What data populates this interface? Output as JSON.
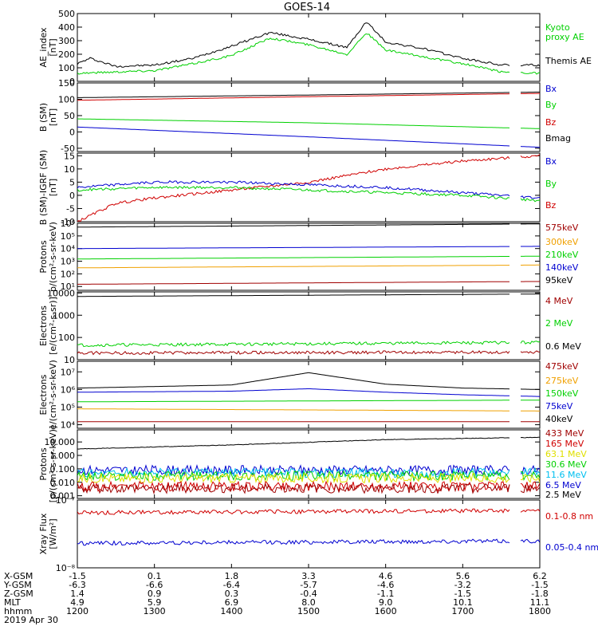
{
  "title": "GOES-14",
  "colors": {
    "black": "#000000",
    "red": "#d00000",
    "green": "#00d000",
    "blue": "#0000d0",
    "orange": "#f0a000",
    "cyan": "#00c0f0",
    "yellow": "#e0e000",
    "darkred": "#a00000"
  },
  "panels": [
    {
      "id": "ae",
      "ylabel": [
        "AE_index",
        "[nT]"
      ],
      "ticks": [
        {
          "v": 500,
          "t": "500"
        },
        {
          "v": 400,
          "t": "400"
        },
        {
          "v": 300,
          "t": "300"
        },
        {
          "v": 200,
          "t": "200"
        },
        {
          "v": 100,
          "t": "100"
        },
        {
          "v": 0,
          "t": "0"
        }
      ],
      "ymin": 0,
      "ymax": 500,
      "log": false,
      "legend": [
        {
          "text": "Kyoto",
          "color": "#00d000"
        },
        {
          "text": "proxy AE",
          "color": "#00d000"
        },
        {
          "text": "Themis AE",
          "color": "#000000"
        }
      ]
    },
    {
      "id": "b",
      "ylabel": [
        "B (SM)",
        "[nT]"
      ],
      "ticks": [
        {
          "v": 150,
          "t": "150"
        },
        {
          "v": 100,
          "t": "100"
        },
        {
          "v": 50,
          "t": "50"
        },
        {
          "v": 0,
          "t": "0"
        },
        {
          "v": -50,
          "t": "-50"
        }
      ],
      "ymin": -60,
      "ymax": 150,
      "log": false,
      "legend": [
        {
          "text": "Bx",
          "color": "#0000d0"
        },
        {
          "text": "By",
          "color": "#00d000"
        },
        {
          "text": "Bz",
          "color": "#d00000"
        },
        {
          "text": "Bmag",
          "color": "#000000"
        }
      ]
    },
    {
      "id": "bigrf",
      "ylabel": [
        "B (SM)-IGRF (SM)",
        "[nT]"
      ],
      "ticks": [
        {
          "v": 15,
          "t": "15"
        },
        {
          "v": 10,
          "t": "10"
        },
        {
          "v": 5,
          "t": "5"
        },
        {
          "v": 0,
          "t": "0"
        },
        {
          "v": -5,
          "t": "-5"
        },
        {
          "v": -10,
          "t": "-10"
        }
      ],
      "ymin": -10,
      "ymax": 16,
      "log": false,
      "legend": [
        {
          "text": "Bx",
          "color": "#0000d0"
        },
        {
          "text": "By",
          "color": "#00d000"
        },
        {
          "text": "Bz",
          "color": "#d00000"
        }
      ]
    },
    {
      "id": "protons1",
      "ylabel": [
        "Protons",
        "p/(cm²-s-sr-keV)"
      ],
      "ticks": [
        {
          "v": 6,
          "t": "10⁶"
        },
        {
          "v": 5,
          "t": "10⁵"
        },
        {
          "v": 4,
          "t": "10⁴"
        },
        {
          "v": 3,
          "t": "10³"
        },
        {
          "v": 2,
          "t": "10²"
        },
        {
          "v": 1,
          "t": "10¹"
        }
      ],
      "ymin": 0.7,
      "ymax": 6,
      "log": true,
      "legend": [
        {
          "text": "575keV",
          "color": "#a00000"
        },
        {
          "text": "300keV",
          "color": "#f0a000"
        },
        {
          "text": "210keV",
          "color": "#00d000"
        },
        {
          "text": "140keV",
          "color": "#0000d0"
        },
        {
          "text": "95keV",
          "color": "#000000"
        }
      ]
    },
    {
      "id": "electrons1",
      "ylabel": [
        "Electrons",
        "[e/(cm²-s-sr)]"
      ],
      "ticks": [
        {
          "v": 4,
          "t": "10000"
        },
        {
          "v": 3,
          "t": "1000"
        },
        {
          "v": 2,
          "t": "100"
        },
        {
          "v": 1,
          "t": "10"
        }
      ],
      "ymin": 1,
      "ymax": 4.05,
      "log": true,
      "legend": [
        {
          "text": "4 MeV",
          "color": "#a00000"
        },
        {
          "text": "2 MeV",
          "color": "#00d000"
        },
        {
          "text": "0.6 MeV",
          "color": "#000000"
        }
      ]
    },
    {
      "id": "electrons2",
      "ylabel": [
        "Electrons",
        "e/(cm²-s-sr-keV)"
      ],
      "ticks": [
        {
          "v": 7,
          "t": "10⁷"
        },
        {
          "v": 6,
          "t": "10⁶"
        },
        {
          "v": 5,
          "t": "10⁵"
        },
        {
          "v": 4,
          "t": "10⁴"
        }
      ],
      "ymin": 3.8,
      "ymax": 7.6,
      "log": true,
      "legend": [
        {
          "text": "475keV",
          "color": "#a00000"
        },
        {
          "text": "275keV",
          "color": "#f0a000"
        },
        {
          "text": "150keV",
          "color": "#00d000"
        },
        {
          "text": "75keV",
          "color": "#0000d0"
        },
        {
          "text": "40keV",
          "color": "#000000"
        }
      ]
    },
    {
      "id": "protons2",
      "ylabel": [
        "Protons",
        "[p/(cm²-s-sr-keV)]"
      ],
      "ticks": [
        {
          "v": 1,
          "t": "10.000"
        },
        {
          "v": 0,
          "t": "1.000"
        },
        {
          "v": -1,
          "t": "0.100"
        },
        {
          "v": -2,
          "t": "0.010"
        },
        {
          "v": -3,
          "t": "0.001"
        }
      ],
      "ymin": -3.2,
      "ymax": 1.9,
      "log": true,
      "legend": [
        {
          "text": "433 MeV",
          "color": "#a00000"
        },
        {
          "text": "165 MeV",
          "color": "#d00000"
        },
        {
          "text": "63.1 MeV",
          "color": "#e0e000"
        },
        {
          "text": "30.6 MeV",
          "color": "#00d000"
        },
        {
          "text": "11.6 MeV",
          "color": "#00c0f0"
        },
        {
          "text": "6.5 MeV",
          "color": "#0000d0"
        },
        {
          "text": "2.5 MeV",
          "color": "#000000"
        }
      ]
    },
    {
      "id": "xray",
      "ylabel": [
        "Xray Flux",
        "[W/m²]"
      ],
      "ticks": [
        {
          "v": -7,
          "t": "10⁻⁷"
        },
        {
          "v": -8,
          "t": "10⁻⁸"
        }
      ],
      "ymin": -8,
      "ymax": -7,
      "log": true,
      "legend": [
        {
          "text": "0.1-0.8 nm",
          "color": "#d00000"
        },
        {
          "text": "0.05-0.4 nm",
          "color": "#0000d0"
        }
      ]
    }
  ],
  "axis_rows": [
    {
      "label": "X-GSM",
      "values": [
        "-1.5",
        "0.1",
        "1.8",
        "3.3",
        "4.6",
        "5.6",
        "6.2"
      ]
    },
    {
      "label": "Y-GSM",
      "values": [
        "-6.3",
        "-6.6",
        "-6.4",
        "-5.7",
        "-4.6",
        "-3.2",
        "-1.5"
      ]
    },
    {
      "label": "Z-GSM",
      "values": [
        "1.4",
        "0.9",
        "0.3",
        "-0.4",
        "-1.1",
        "-1.5",
        "-1.8"
      ]
    },
    {
      "label": "MLT",
      "values": [
        "4.9",
        "5.9",
        "6.9",
        "8.0",
        "9.0",
        "10.1",
        "11.1"
      ]
    },
    {
      "label": "hhmm",
      "values": [
        "1200",
        "1300",
        "1400",
        "1500",
        "1600",
        "1700",
        "1800"
      ]
    }
  ],
  "date": "2019 Apr 30",
  "chart_data": {
    "type": "line",
    "title": "GOES-14",
    "x_ticks": [
      "1200",
      "1300",
      "1400",
      "1500",
      "1600",
      "1700",
      "1800"
    ],
    "panels": [
      {
        "ylabel": "AE_index [nT]",
        "series": [
          {
            "name": "Themis AE",
            "color": "#000000",
            "x": [
              1200,
              1210,
              1230,
              1300,
              1330,
              1400,
              1430,
              1500,
              1530,
              1545,
              1600,
              1630,
              1700,
              1730,
              1800
            ],
            "y": [
              130,
              170,
              110,
              120,
              170,
              260,
              360,
              310,
              250,
              440,
              290,
              240,
              170,
              120,
              120
            ]
          },
          {
            "name": "Kyoto proxy AE",
            "color": "#00d000",
            "x": [
              1200,
              1230,
              1300,
              1330,
              1400,
              1430,
              1500,
              1530,
              1545,
              1600,
              1630,
              1700,
              1730,
              1800
            ],
            "y": [
              60,
              70,
              80,
              130,
              190,
              320,
              270,
              200,
              360,
              230,
              180,
              130,
              70,
              60
            ]
          }
        ]
      },
      {
        "ylabel": "B (SM) [nT]",
        "series": [
          {
            "name": "Bmag",
            "color": "#000000",
            "x": [
              1200,
              1500,
              1800
            ],
            "y": [
              105,
              113,
              122
            ]
          },
          {
            "name": "Bz",
            "color": "#d00000",
            "x": [
              1200,
              1500,
              1800
            ],
            "y": [
              97,
              108,
              118
            ]
          },
          {
            "name": "By",
            "color": "#00d000",
            "x": [
              1200,
              1500,
              1800
            ],
            "y": [
              40,
              28,
              10
            ]
          },
          {
            "name": "Bx",
            "color": "#0000d0",
            "x": [
              1200,
              1500,
              1800
            ],
            "y": [
              15,
              -15,
              -47
            ]
          }
        ]
      },
      {
        "ylabel": "B (SM)-IGRF (SM) [nT]",
        "series": [
          {
            "name": "Bz",
            "color": "#d00000",
            "x": [
              1200,
              1230,
              1300,
              1400,
              1500,
              1600,
              1700,
              1800
            ],
            "y": [
              -10,
              -3,
              -1,
              2,
              5,
              10,
              13,
              15
            ]
          },
          {
            "name": "Bx",
            "color": "#0000d0",
            "x": [
              1200,
              1300,
              1400,
              1500,
              1600,
              1700,
              1800
            ],
            "y": [
              3,
              5,
              5,
              4,
              3,
              1,
              -1
            ]
          },
          {
            "name": "By",
            "color": "#00d000",
            "x": [
              1200,
              1300,
              1400,
              1500,
              1600,
              1700,
              1800
            ],
            "y": [
              2,
              3,
              3,
              2,
              1,
              0,
              -2
            ]
          }
        ]
      },
      {
        "ylabel": "Protons p/(cm2-s-sr-keV)",
        "series": [
          {
            "name": "95keV",
            "color": "#000000",
            "x": [
              1200,
              1800
            ],
            "y": [
              500000,
              900000
            ]
          },
          {
            "name": "140keV",
            "color": "#0000d0",
            "x": [
              1200,
              1800
            ],
            "y": [
              10000,
              15000
            ]
          },
          {
            "name": "210keV",
            "color": "#00d000",
            "x": [
              1200,
              1800
            ],
            "y": [
              1500,
              2500
            ]
          },
          {
            "name": "300keV",
            "color": "#f0a000",
            "x": [
              1200,
              1800
            ],
            "y": [
              300,
              500
            ]
          },
          {
            "name": "575keV",
            "color": "#a00000",
            "x": [
              1200,
              1800
            ],
            "y": [
              15,
              25
            ]
          }
        ]
      },
      {
        "ylabel": "Electrons [e/(cm2-s-sr)]",
        "series": [
          {
            "name": "0.6 MeV",
            "color": "#000000",
            "x": [
              1200,
              1800
            ],
            "y": [
              7000,
              9000
            ]
          },
          {
            "name": "2 MeV",
            "color": "#00d000",
            "x": [
              1200,
              1800
            ],
            "y": [
              45,
              60
            ]
          },
          {
            "name": "4 MeV",
            "color": "#a00000",
            "x": [
              1200,
              1800
            ],
            "y": [
              20,
              22
            ]
          }
        ]
      },
      {
        "ylabel": "Electrons e/(cm2-s-sr-keV)",
        "series": [
          {
            "name": "40keV",
            "color": "#000000",
            "x": [
              1200,
              1400,
              1500,
              1600,
              1700,
              1800
            ],
            "y": [
              1200000,
              1800000,
              9000000,
              2000000,
              1200000,
              1000000
            ]
          },
          {
            "name": "75keV",
            "color": "#0000d0",
            "x": [
              1200,
              1400,
              1500,
              1600,
              1700,
              1800
            ],
            "y": [
              700000,
              800000,
              1100000,
              700000,
              500000,
              400000
            ]
          },
          {
            "name": "150keV",
            "color": "#00d000",
            "x": [
              1200,
              1800
            ],
            "y": [
              200000,
              250000
            ]
          },
          {
            "name": "275keV",
            "color": "#f0a000",
            "x": [
              1200,
              1800
            ],
            "y": [
              80000,
              60000
            ]
          },
          {
            "name": "475keV",
            "color": "#a00000",
            "x": [
              1200,
              1800
            ],
            "y": [
              15000,
              15000
            ]
          }
        ]
      },
      {
        "ylabel": "Protons [p/(cm2-s-sr-keV)]",
        "series": [
          {
            "name": "2.5 MeV",
            "color": "#000000",
            "x": [
              1200,
              1400,
              1600,
              1800
            ],
            "y": [
              3,
              6,
              15,
              22
            ]
          },
          {
            "name": "6.5 MeV",
            "color": "#0000d0",
            "x": [
              1200,
              1800
            ],
            "y": [
              0.08,
              0.08
            ]
          },
          {
            "name": "11.6 MeV",
            "color": "#00c0f0",
            "x": [
              1200,
              1800
            ],
            "y": [
              0.05,
              0.05
            ]
          },
          {
            "name": "30.6 MeV",
            "color": "#00d000",
            "x": [
              1200,
              1800
            ],
            "y": [
              0.03,
              0.03
            ]
          },
          {
            "name": "63.1 MeV",
            "color": "#e0e000",
            "x": [
              1200,
              1800
            ],
            "y": [
              0.02,
              0.02
            ]
          },
          {
            "name": "165 MeV",
            "color": "#d00000",
            "x": [
              1200,
              1800
            ],
            "y": [
              0.005,
              0.005
            ]
          },
          {
            "name": "433 MeV",
            "color": "#a00000",
            "x": [
              1200,
              1800
            ],
            "y": [
              0.0035,
              0.0035
            ]
          }
        ]
      },
      {
        "ylabel": "Xray Flux [W/m2]",
        "series": [
          {
            "name": "0.1-0.8 nm",
            "color": "#d00000",
            "x": [
              1200,
              1800
            ],
            "y": [
              6.5e-08,
              7e-08
            ]
          },
          {
            "name": "0.05-0.4 nm",
            "color": "#0000d0",
            "x": [
              1200,
              1800
            ],
            "y": [
              2.3e-08,
              2.5e-08
            ]
          }
        ]
      }
    ]
  }
}
